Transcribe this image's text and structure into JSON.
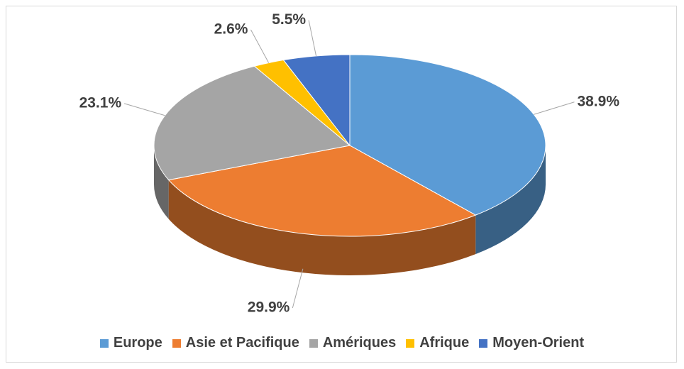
{
  "chart_data": {
    "type": "pie",
    "categories": [
      "Europe",
      "Asie et Pacifique",
      "Amériques",
      "Afrique",
      "Moyen-Orient"
    ],
    "values": [
      38.9,
      29.9,
      23.1,
      2.6,
      5.5
    ],
    "value_labels": [
      "38.9%",
      "29.9%",
      "23.1%",
      "2.6%",
      "5.5%"
    ],
    "colors": [
      "#5b9bd5",
      "#ed7d31",
      "#a5a5a5",
      "#ffc000",
      "#4472c4"
    ],
    "legend": "bottom",
    "three_d": true
  }
}
